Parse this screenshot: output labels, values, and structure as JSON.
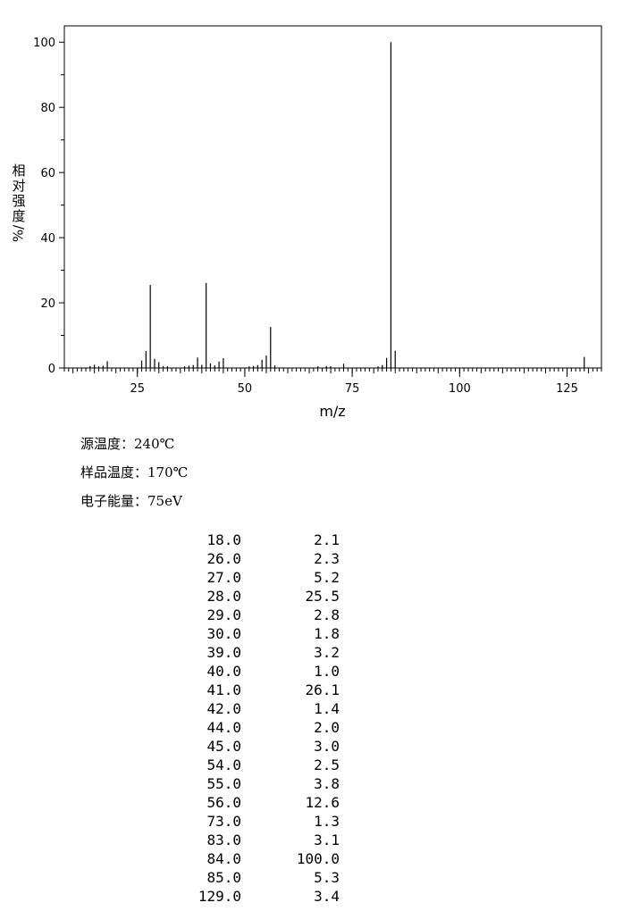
{
  "chart_data": {
    "type": "bar",
    "xlabel": "m/z",
    "ylabel_chars": [
      "相",
      "对",
      "强",
      "度"
    ],
    "ylabel_unit": "%/",
    "xlim": [
      8,
      133
    ],
    "ylim": [
      0,
      105
    ],
    "x_ticks": [
      25,
      50,
      75,
      100,
      125
    ],
    "y_ticks": [
      0,
      20,
      40,
      60,
      80,
      100
    ],
    "grid": false,
    "peaks": [
      {
        "mz": 14,
        "intensity": 0.6
      },
      {
        "mz": 15,
        "intensity": 1.0
      },
      {
        "mz": 16,
        "intensity": 0.5
      },
      {
        "mz": 17,
        "intensity": 0.7
      },
      {
        "mz": 18,
        "intensity": 2.1
      },
      {
        "mz": 26,
        "intensity": 2.3
      },
      {
        "mz": 27,
        "intensity": 5.2
      },
      {
        "mz": 28,
        "intensity": 25.5
      },
      {
        "mz": 29,
        "intensity": 2.8
      },
      {
        "mz": 30,
        "intensity": 1.8
      },
      {
        "mz": 31,
        "intensity": 0.6
      },
      {
        "mz": 32,
        "intensity": 0.5
      },
      {
        "mz": 36,
        "intensity": 0.5
      },
      {
        "mz": 37,
        "intensity": 0.7
      },
      {
        "mz": 38,
        "intensity": 0.9
      },
      {
        "mz": 39,
        "intensity": 3.2
      },
      {
        "mz": 40,
        "intensity": 1.0
      },
      {
        "mz": 41,
        "intensity": 26.1
      },
      {
        "mz": 42,
        "intensity": 1.4
      },
      {
        "mz": 43,
        "intensity": 0.8
      },
      {
        "mz": 44,
        "intensity": 2.0
      },
      {
        "mz": 45,
        "intensity": 3.0
      },
      {
        "mz": 51,
        "intensity": 0.5
      },
      {
        "mz": 52,
        "intensity": 0.6
      },
      {
        "mz": 53,
        "intensity": 0.9
      },
      {
        "mz": 54,
        "intensity": 2.5
      },
      {
        "mz": 55,
        "intensity": 3.8
      },
      {
        "mz": 56,
        "intensity": 12.6
      },
      {
        "mz": 57,
        "intensity": 0.8
      },
      {
        "mz": 67,
        "intensity": 0.5
      },
      {
        "mz": 69,
        "intensity": 0.6
      },
      {
        "mz": 70,
        "intensity": 0.5
      },
      {
        "mz": 73,
        "intensity": 1.3
      },
      {
        "mz": 81,
        "intensity": 0.5
      },
      {
        "mz": 82,
        "intensity": 0.9
      },
      {
        "mz": 83,
        "intensity": 3.1
      },
      {
        "mz": 84,
        "intensity": 100.0
      },
      {
        "mz": 85,
        "intensity": 5.3
      },
      {
        "mz": 129,
        "intensity": 3.4
      }
    ]
  },
  "conditions": [
    {
      "label": "源温度：",
      "value": "240℃"
    },
    {
      "label": "样品温度：",
      "value": "170℃"
    },
    {
      "label": "电子能量：",
      "value": "75eV"
    }
  ],
  "peak_table": [
    {
      "mz": "18.0",
      "intensity": "2.1"
    },
    {
      "mz": "26.0",
      "intensity": "2.3"
    },
    {
      "mz": "27.0",
      "intensity": "5.2"
    },
    {
      "mz": "28.0",
      "intensity": "25.5"
    },
    {
      "mz": "29.0",
      "intensity": "2.8"
    },
    {
      "mz": "30.0",
      "intensity": "1.8"
    },
    {
      "mz": "39.0",
      "intensity": "3.2"
    },
    {
      "mz": "40.0",
      "intensity": "1.0"
    },
    {
      "mz": "41.0",
      "intensity": "26.1"
    },
    {
      "mz": "42.0",
      "intensity": "1.4"
    },
    {
      "mz": "44.0",
      "intensity": "2.0"
    },
    {
      "mz": "45.0",
      "intensity": "3.0"
    },
    {
      "mz": "54.0",
      "intensity": "2.5"
    },
    {
      "mz": "55.0",
      "intensity": "3.8"
    },
    {
      "mz": "56.0",
      "intensity": "12.6"
    },
    {
      "mz": "73.0",
      "intensity": "1.3"
    },
    {
      "mz": "83.0",
      "intensity": "3.1"
    },
    {
      "mz": "84.0",
      "intensity": "100.0"
    },
    {
      "mz": "85.0",
      "intensity": "5.3"
    },
    {
      "mz": "129.0",
      "intensity": "3.4"
    }
  ]
}
